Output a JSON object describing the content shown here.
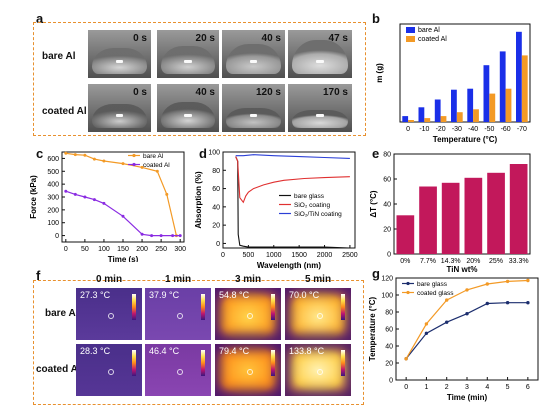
{
  "panels": {
    "a": {
      "letter": "a",
      "rows": [
        {
          "label": "bare Al",
          "times": [
            "0 s",
            "20 s",
            "40 s",
            "47 s"
          ]
        },
        {
          "label": "coated Al",
          "times": [
            "0 s",
            "40 s",
            "120 s",
            "170 s"
          ]
        }
      ]
    },
    "b": {
      "letter": "b"
    },
    "c": {
      "letter": "c"
    },
    "d": {
      "letter": "d"
    },
    "e": {
      "letter": "e"
    },
    "f": {
      "letter": "f",
      "headers": [
        "0 min",
        "1 min",
        "3 min",
        "5 min"
      ],
      "rows": [
        {
          "label": "bare Al",
          "temps": [
            "27.3 °C",
            "37.9 °C",
            "54.8 °C",
            "70.0 °C"
          ]
        },
        {
          "label": "coated Al",
          "temps": [
            "28.3 °C",
            "46.4 °C",
            "79.4 °C",
            "133.8 °C"
          ]
        }
      ]
    },
    "g": {
      "letter": "g"
    }
  },
  "chart_data": [
    {
      "id": "b",
      "type": "bar",
      "xlabel": "Temperature (°C)",
      "ylabel": "m (g)",
      "categories": [
        "0",
        "-10",
        "-20",
        "-30",
        "-40",
        "-50",
        "-60",
        "-70"
      ],
      "series": [
        {
          "name": "bare Al",
          "color": "#1a2fe8",
          "values": [
            0.06,
            0.15,
            0.23,
            0.33,
            0.34,
            0.58,
            0.72,
            0.92
          ]
        },
        {
          "name": "coated Al",
          "color": "#f39a26",
          "values": [
            0.02,
            0.04,
            0.06,
            0.1,
            0.13,
            0.29,
            0.34,
            0.68
          ]
        }
      ],
      "ylim": [
        0,
        1.0
      ],
      "legend": "top-left"
    },
    {
      "id": "c",
      "type": "line",
      "xlabel": "Time (s)",
      "ylabel": "Force (kPa)",
      "xlim": [
        -10,
        310
      ],
      "ylim": [
        -50,
        650
      ],
      "xticks": [
        0,
        50,
        100,
        150,
        200,
        250,
        300
      ],
      "yticks": [
        0,
        100,
        200,
        300,
        400,
        500,
        600
      ],
      "series": [
        {
          "name": "bare Al",
          "color": "#f39a26",
          "x": [
            0,
            25,
            50,
            75,
            100,
            150,
            200,
            240,
            265,
            290
          ],
          "y": [
            640,
            630,
            625,
            595,
            580,
            560,
            530,
            500,
            320,
            0
          ]
        },
        {
          "name": "coated Al",
          "color": "#8a2be2",
          "x": [
            0,
            25,
            50,
            75,
            100,
            150,
            200,
            225,
            250,
            280,
            300
          ],
          "y": [
            345,
            320,
            300,
            280,
            250,
            150,
            10,
            0,
            0,
            0,
            0
          ]
        }
      ],
      "legend": "top-right"
    },
    {
      "id": "d",
      "type": "line",
      "xlabel": "Wavelength (nm)",
      "ylabel": "Absorption (%)",
      "xlim": [
        0,
        2600
      ],
      "ylim": [
        -5,
        100
      ],
      "xticks": [
        0,
        500,
        1000,
        1500,
        2000,
        2500
      ],
      "yticks": [
        0,
        20,
        40,
        60,
        80,
        100
      ],
      "series": [
        {
          "name": "bare glass",
          "color": "#111111",
          "x": [
            250,
            290,
            300,
            330,
            400,
            500,
            800,
            1200,
            1600,
            2000,
            2500
          ],
          "y": [
            95,
            90,
            10,
            -2,
            -3,
            -4,
            -4,
            -4,
            -4,
            -4,
            -5
          ]
        },
        {
          "name": "SiO₂ coating",
          "color": "#e03030",
          "x": [
            250,
            290,
            300,
            330,
            400,
            450,
            500,
            600,
            800,
            1000,
            1200,
            1600,
            2000,
            2500
          ],
          "y": [
            95,
            90,
            80,
            50,
            45,
            52,
            56,
            60,
            64,
            67,
            69,
            71,
            72,
            73
          ]
        },
        {
          "name": "SiO₂/TiN coating",
          "color": "#2b3fd6",
          "x": [
            250,
            300,
            400,
            600,
            1000,
            1500,
            2000,
            2500
          ],
          "y": [
            96,
            96,
            96,
            97,
            96,
            95,
            94,
            93
          ]
        }
      ],
      "legend": "center-right"
    },
    {
      "id": "e",
      "type": "bar",
      "xlabel": "TiN wt%",
      "ylabel": "ΔT (°C)",
      "categories": [
        "0%",
        "7.7%",
        "14.3%",
        "20%",
        "25%",
        "33.3%"
      ],
      "values": [
        31,
        54,
        57,
        61,
        65,
        72
      ],
      "color": "#c2185b",
      "ylim": [
        0,
        80
      ],
      "yticks": [
        0,
        20,
        40,
        60,
        80
      ]
    },
    {
      "id": "g",
      "type": "line",
      "xlabel": "Time (min)",
      "ylabel": "Temperature (°C)",
      "xlim": [
        -0.5,
        6.5
      ],
      "ylim": [
        0,
        120
      ],
      "xticks": [
        0,
        1,
        2,
        3,
        4,
        5,
        6
      ],
      "yticks": [
        0,
        20,
        40,
        60,
        80,
        100,
        120
      ],
      "series": [
        {
          "name": "bare glass",
          "color": "#1c2e6e",
          "x": [
            0,
            1,
            2,
            3,
            4,
            5,
            6
          ],
          "y": [
            25,
            55,
            68,
            78,
            90,
            91,
            91
          ]
        },
        {
          "name": "coated glass",
          "color": "#f39a26",
          "x": [
            0,
            1,
            2,
            3,
            4,
            5,
            6
          ],
          "y": [
            25,
            66,
            94,
            106,
            113,
            116,
            117
          ]
        }
      ],
      "legend": "top-left"
    }
  ]
}
